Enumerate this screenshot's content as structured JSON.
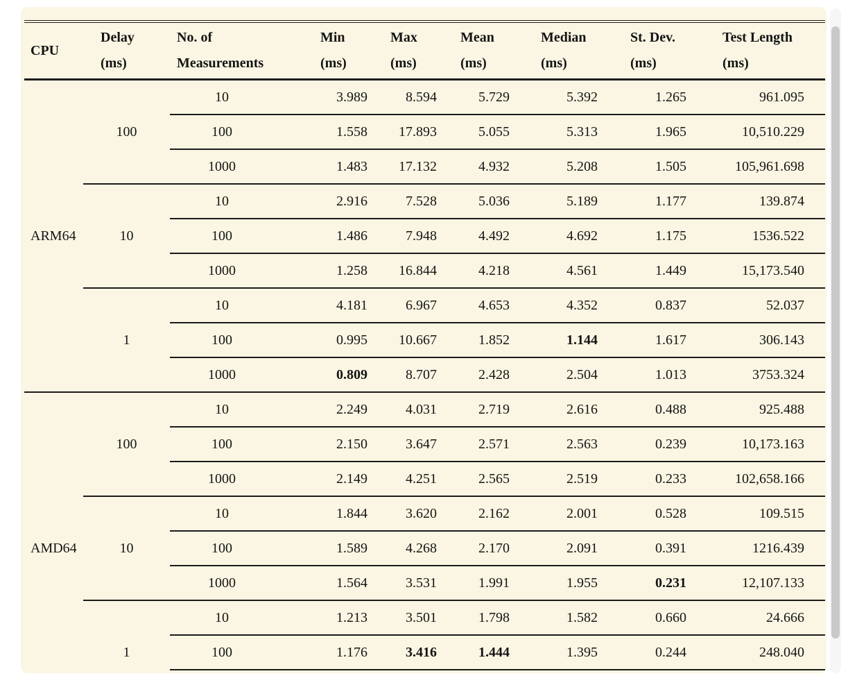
{
  "colors": {
    "panel_bg": "#faf6e3",
    "rule_line": "#1b1b1b",
    "scrollbar_thumb": "#c9c9c9",
    "scrollbar_track": "#f6f6f6"
  },
  "table": {
    "columns": [
      {
        "key": "cpu",
        "label": "CPU",
        "unit": ""
      },
      {
        "key": "delay",
        "label": "Delay",
        "unit": "(ms)"
      },
      {
        "key": "meas",
        "label": "No. of",
        "unit": "Measurements"
      },
      {
        "key": "min",
        "label": "Min",
        "unit": "(ms)"
      },
      {
        "key": "max",
        "label": "Max",
        "unit": "(ms)"
      },
      {
        "key": "mean",
        "label": "Mean",
        "unit": "(ms)"
      },
      {
        "key": "median",
        "label": "Median",
        "unit": "(ms)"
      },
      {
        "key": "stdev",
        "label": "St. Dev.",
        "unit": "(ms)"
      },
      {
        "key": "testlen",
        "label": "Test Length",
        "unit": "(ms)"
      }
    ],
    "groups": [
      {
        "cpu": "ARM64",
        "delays": [
          {
            "delay": "100",
            "rows": [
              {
                "meas": "10",
                "min": "3.989",
                "max": "8.594",
                "mean": "5.729",
                "median": "5.392",
                "stdev": "1.265",
                "testlen": "961.095",
                "bold": []
              },
              {
                "meas": "100",
                "min": "1.558",
                "max": "17.893",
                "mean": "5.055",
                "median": "5.313",
                "stdev": "1.965",
                "testlen": "10,510.229",
                "bold": []
              },
              {
                "meas": "1000",
                "min": "1.483",
                "max": "17.132",
                "mean": "4.932",
                "median": "5.208",
                "stdev": "1.505",
                "testlen": "105,961.698",
                "bold": []
              }
            ]
          },
          {
            "delay": "10",
            "rows": [
              {
                "meas": "10",
                "min": "2.916",
                "max": "7.528",
                "mean": "5.036",
                "median": "5.189",
                "stdev": "1.177",
                "testlen": "139.874",
                "bold": []
              },
              {
                "meas": "100",
                "min": "1.486",
                "max": "7.948",
                "mean": "4.492",
                "median": "4.692",
                "stdev": "1.175",
                "testlen": "1536.522",
                "bold": []
              },
              {
                "meas": "1000",
                "min": "1.258",
                "max": "16.844",
                "mean": "4.218",
                "median": "4.561",
                "stdev": "1.449",
                "testlen": "15,173.540",
                "bold": []
              }
            ]
          },
          {
            "delay": "1",
            "rows": [
              {
                "meas": "10",
                "min": "4.181",
                "max": "6.967",
                "mean": "4.653",
                "median": "4.352",
                "stdev": "0.837",
                "testlen": "52.037",
                "bold": []
              },
              {
                "meas": "100",
                "min": "0.995",
                "max": "10.667",
                "mean": "1.852",
                "median": "1.144",
                "stdev": "1.617",
                "testlen": "306.143",
                "bold": [
                  "median"
                ]
              },
              {
                "meas": "1000",
                "min": "0.809",
                "max": "8.707",
                "mean": "2.428",
                "median": "2.504",
                "stdev": "1.013",
                "testlen": "3753.324",
                "bold": [
                  "min"
                ]
              }
            ]
          }
        ]
      },
      {
        "cpu": "AMD64",
        "delays": [
          {
            "delay": "100",
            "rows": [
              {
                "meas": "10",
                "min": "2.249",
                "max": "4.031",
                "mean": "2.719",
                "median": "2.616",
                "stdev": "0.488",
                "testlen": "925.488",
                "bold": []
              },
              {
                "meas": "100",
                "min": "2.150",
                "max": "3.647",
                "mean": "2.571",
                "median": "2.563",
                "stdev": "0.239",
                "testlen": "10,173.163",
                "bold": []
              },
              {
                "meas": "1000",
                "min": "2.149",
                "max": "4.251",
                "mean": "2.565",
                "median": "2.519",
                "stdev": "0.233",
                "testlen": "102,658.166",
                "bold": []
              }
            ]
          },
          {
            "delay": "10",
            "rows": [
              {
                "meas": "10",
                "min": "1.844",
                "max": "3.620",
                "mean": "2.162",
                "median": "2.001",
                "stdev": "0.528",
                "testlen": "109.515",
                "bold": []
              },
              {
                "meas": "100",
                "min": "1.589",
                "max": "4.268",
                "mean": "2.170",
                "median": "2.091",
                "stdev": "0.391",
                "testlen": "1216.439",
                "bold": []
              },
              {
                "meas": "1000",
                "min": "1.564",
                "max": "3.531",
                "mean": "1.991",
                "median": "1.955",
                "stdev": "0.231",
                "testlen": "12,107.133",
                "bold": [
                  "stdev"
                ]
              }
            ]
          },
          {
            "delay": "1",
            "clipped_rows": 1,
            "rows": [
              {
                "meas": "10",
                "min": "1.213",
                "max": "3.501",
                "mean": "1.798",
                "median": "1.582",
                "stdev": "0.660",
                "testlen": "24.666",
                "bold": []
              },
              {
                "meas": "100",
                "min": "1.176",
                "max": "3.416",
                "mean": "1.444",
                "median": "1.395",
                "stdev": "0.244",
                "testlen": "248.040",
                "bold": [
                  "max",
                  "mean"
                ]
              }
            ]
          }
        ]
      }
    ]
  }
}
